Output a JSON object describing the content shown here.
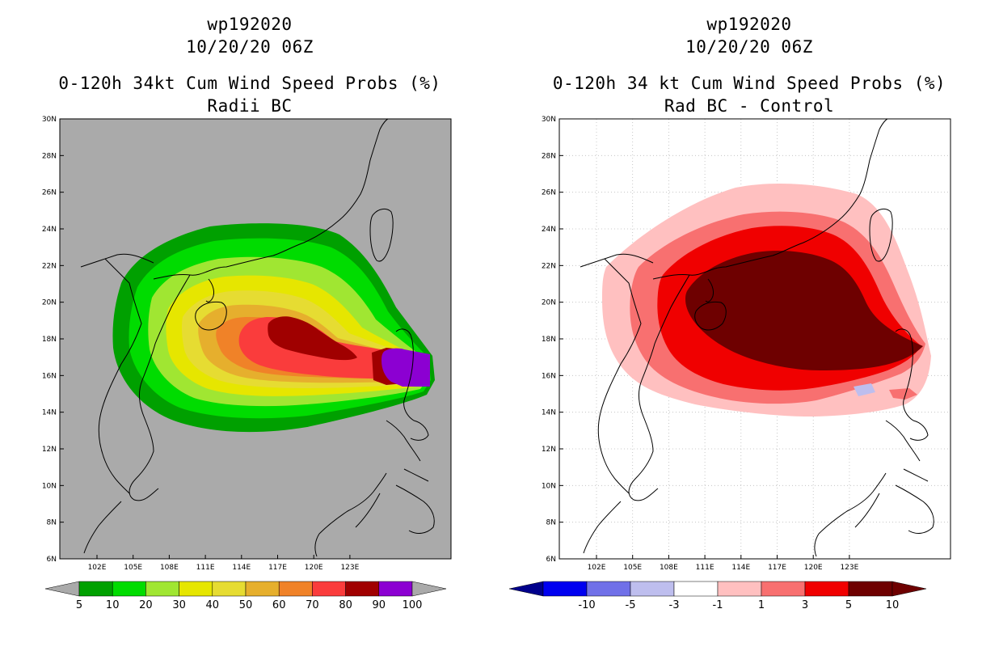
{
  "colors": {
    "left_bg": "#aaaaaa",
    "right_bg": "#ffffff",
    "land_line": "#000000",
    "left_palette": [
      "#00a000",
      "#00dc00",
      "#a0e632",
      "#e6e600",
      "#e6dc32",
      "#e6af2d",
      "#f08228",
      "#fa3c3c",
      "#a00000",
      "#8c00d2"
    ],
    "right_palette": [
      "#00008c",
      "#0000f0",
      "#7070e8",
      "#bebeee",
      "#ffffff",
      "#ffc0c0",
      "#f87070",
      "#f00000",
      "#6e0000"
    ]
  },
  "left_panel": {
    "storm_id": "wp192020",
    "datetime": "10/20/20 06Z",
    "title": "0-120h 34kt Cum Wind Speed Probs (%)",
    "subtitle": "Radii BC",
    "colorbar_labels": [
      "5",
      "10",
      "20",
      "30",
      "40",
      "50",
      "60",
      "70",
      "80",
      "90",
      "100"
    ]
  },
  "right_panel": {
    "storm_id": "wp192020",
    "datetime": "10/20/20 06Z",
    "title": "0-120h 34 kt Cum Wind Speed Probs (%)",
    "subtitle": "Rad BC - Control",
    "colorbar_labels": [
      "-10",
      "-5",
      "-3",
      "-1",
      "1",
      "3",
      "5",
      "10"
    ]
  },
  "axes": {
    "lat_labels": [
      "30N",
      "28N",
      "26N",
      "24N",
      "22N",
      "20N",
      "18N",
      "16N",
      "14N",
      "12N",
      "10N",
      "8N",
      "6N"
    ],
    "lon_labels": [
      "102E",
      "105E",
      "108E",
      "111E",
      "114E",
      "117E",
      "120E",
      "123E"
    ]
  }
}
